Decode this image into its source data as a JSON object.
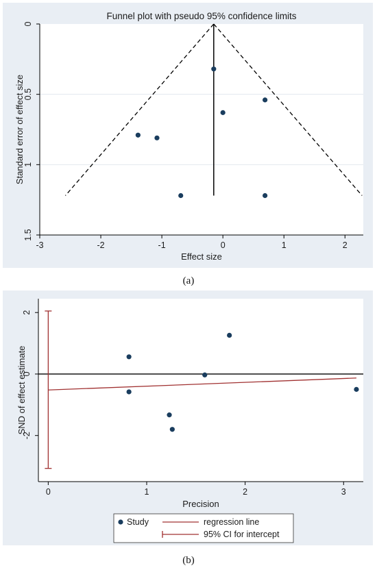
{
  "chart_data": [
    {
      "type": "scatter",
      "panel_caption": "(a)",
      "title": "Funnel plot with pseudo 95% confidence limits",
      "xlabel": "Effect size",
      "ylabel": "Standard error of effect size",
      "xlim": [
        -3,
        2.3
      ],
      "ylim": [
        0,
        1.5
      ],
      "y_reversed": true,
      "xticks": [
        -3,
        -2,
        -1,
        0,
        1,
        2
      ],
      "yticks": [
        0,
        0.5,
        1,
        1.5
      ],
      "grid": true,
      "points": [
        {
          "x": -0.15,
          "y": 0.32
        },
        {
          "x": 0.0,
          "y": 0.63
        },
        {
          "x": 0.69,
          "y": 0.54
        },
        {
          "x": -1.39,
          "y": 0.79
        },
        {
          "x": -1.08,
          "y": 0.81
        },
        {
          "x": -0.69,
          "y": 1.22
        },
        {
          "x": 0.69,
          "y": 1.22
        }
      ],
      "pooled_effect": -0.15,
      "pooled_line_se_range": [
        0,
        1.22
      ],
      "ci_lines": [
        {
          "from": {
            "x": -0.15,
            "y": 0
          },
          "to": {
            "x": -2.58,
            "y": 1.22
          }
        },
        {
          "from": {
            "x": -0.15,
            "y": 0
          },
          "to": {
            "x": 2.28,
            "y": 1.22
          }
        }
      ],
      "colors": {
        "background": "#e9eef4",
        "plot": "#ffffff",
        "point": "#1a3d5e",
        "line": "#000000"
      }
    },
    {
      "type": "scatter",
      "panel_caption": "(b)",
      "xlabel": "Precision",
      "ylabel": "SND of effect estimate",
      "xlim": [
        -0.1,
        3.2
      ],
      "ylim": [
        -3.5,
        2.45
      ],
      "xticks": [
        0,
        1,
        2,
        3
      ],
      "yticks": [
        -2,
        0,
        2
      ],
      "grid": false,
      "points": [
        {
          "x": 0.82,
          "y": 0.56
        },
        {
          "x": 0.82,
          "y": -0.58
        },
        {
          "x": 1.23,
          "y": -1.33
        },
        {
          "x": 1.26,
          "y": -1.8
        },
        {
          "x": 1.59,
          "y": -0.03
        },
        {
          "x": 1.84,
          "y": 1.26
        },
        {
          "x": 3.13,
          "y": -0.5
        }
      ],
      "zero_line": 0,
      "regression_line": {
        "x": [
          0,
          3.13
        ],
        "y": [
          -0.52,
          -0.13
        ]
      },
      "intercept_ci": {
        "x": 0,
        "y": [
          -3.07,
          2.05
        ]
      },
      "legend": {
        "placement": "bottom",
        "items": [
          {
            "label": "Study",
            "kind": "point"
          },
          {
            "label": "regression line",
            "kind": "line"
          },
          {
            "label": "95% CI for intercept",
            "kind": "interval"
          }
        ]
      },
      "colors": {
        "background": "#e9eef4",
        "plot": "#ffffff",
        "point": "#1a3d5e",
        "regression": "#a03030",
        "zero": "#000000"
      }
    }
  ]
}
